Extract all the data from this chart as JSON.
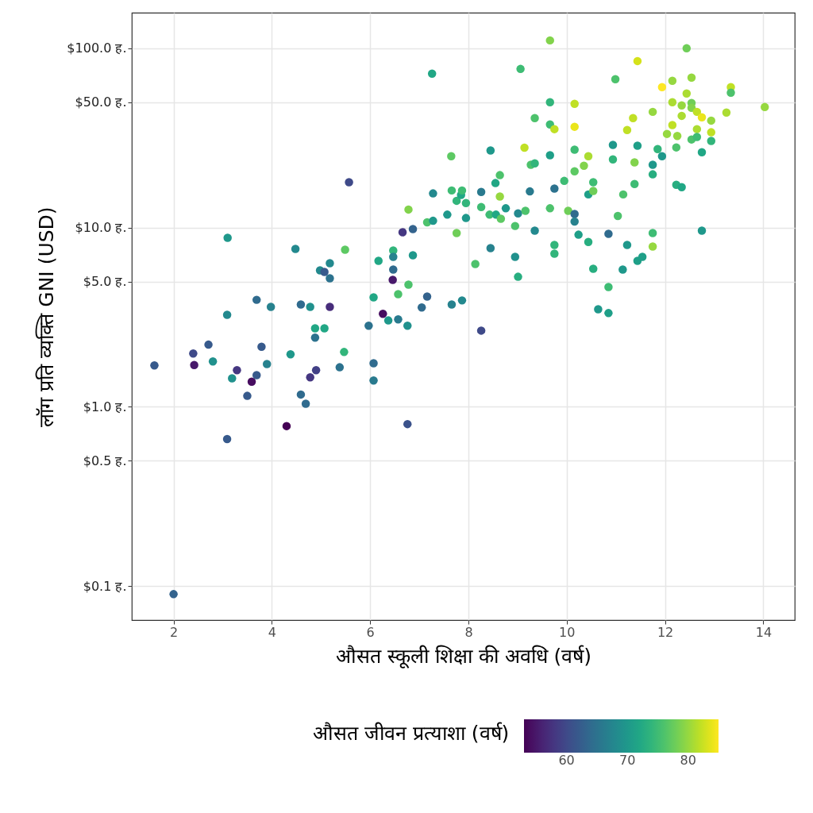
{
  "chart_data": {
    "type": "scatter",
    "xlabel": "औसत स्कूली शिक्षा की अवधि (वर्ष)",
    "ylabel": "लॉग प्रति व्यक्ति GNI (USD)",
    "clabel": "औसत जीवन प्रत्याशा (वर्ष)",
    "log": "y",
    "grid": true,
    "marker": "circle",
    "xlim": [
      1.15,
      14.64
    ],
    "xticks": [
      2,
      4,
      6,
      8,
      10,
      12,
      14
    ],
    "ylim": [
      0.0645,
      158
    ],
    "yticks": [
      {
        "value": 0.1,
        "label": "$0.1 ह."
      },
      {
        "value": 0.5,
        "label": "$0.5 ह."
      },
      {
        "value": 1,
        "label": "$1.0 ह."
      },
      {
        "value": 5,
        "label": "$5.0 ह."
      },
      {
        "value": 10,
        "label": "$10.0 ह."
      },
      {
        "value": 50,
        "label": "$50.0 ह."
      },
      {
        "value": 100,
        "label": "$100.0 ह."
      }
    ],
    "clim": [
      53,
      85
    ],
    "cticks": [
      60,
      70,
      80
    ],
    "x": [
      1.61,
      2.0,
      2.4,
      2.42,
      2.71,
      2.8,
      3.09,
      3.1,
      3.09,
      3.19,
      3.29,
      3.5,
      3.59,
      3.69,
      3.69,
      3.79,
      3.9,
      3.98,
      4.3,
      4.38,
      4.48,
      4.59,
      4.59,
      4.69,
      4.78,
      4.78,
      4.88,
      4.88,
      4.9,
      4.98,
      5.07,
      5.07,
      5.18,
      5.18,
      5.18,
      5.38,
      5.47,
      5.49,
      5.57,
      5.97,
      6.07,
      6.07,
      6.07,
      6.17,
      6.26,
      6.37,
      6.46,
      6.47,
      6.47,
      6.47,
      6.57,
      6.57,
      6.66,
      6.76,
      6.76,
      6.78,
      6.78,
      6.87,
      6.87,
      7.05,
      7.16,
      7.16,
      7.26,
      7.28,
      7.28,
      7.57,
      7.65,
      7.66,
      7.66,
      7.76,
      7.76,
      7.85,
      7.87,
      7.87,
      7.95,
      7.95,
      8.14,
      8.26,
      8.26,
      8.26,
      8.43,
      8.45,
      8.45,
      8.55,
      8.56,
      8.64,
      8.64,
      8.66,
      8.76,
      8.95,
      8.95,
      9.01,
      9.01,
      9.06,
      9.14,
      9.16,
      9.25,
      9.27,
      9.35,
      9.35,
      9.35,
      9.66,
      9.66,
      9.66,
      9.66,
      9.66,
      9.75,
      9.75,
      9.75,
      9.75,
      9.95,
      10.03,
      10.16,
      10.16,
      10.16,
      10.16,
      10.16,
      10.16,
      10.24,
      10.35,
      10.44,
      10.44,
      10.44,
      10.54,
      10.54,
      10.54,
      10.64,
      10.85,
      10.85,
      10.85,
      10.94,
      10.94,
      10.99,
      11.04,
      11.14,
      11.15,
      11.23,
      11.23,
      11.35,
      11.38,
      11.38,
      11.44,
      11.44,
      11.44,
      11.54,
      11.75,
      11.75,
      11.75,
      11.75,
      11.75,
      11.85,
      11.94,
      11.94,
      12.04,
      12.15,
      12.15,
      12.15,
      12.23,
      12.23,
      12.25,
      12.34,
      12.34,
      12.34,
      12.44,
      12.44,
      12.54,
      12.54,
      12.54,
      12.54,
      12.65,
      12.65,
      12.65,
      12.75,
      12.75,
      12.75,
      12.94,
      12.94,
      12.94,
      13.25,
      13.34,
      13.34,
      14.03
    ],
    "values": [
      1.7,
      0.09,
      1.98,
      1.71,
      2.22,
      1.79,
      3.26,
      8.76,
      0.66,
      1.44,
      1.6,
      1.15,
      1.38,
      1.5,
      3.95,
      2.16,
      1.73,
      3.61,
      0.78,
      1.96,
      7.6,
      3.72,
      1.17,
      1.04,
      3.61,
      1.46,
      2.74,
      2.43,
      1.6,
      5.77,
      5.65,
      2.74,
      6.32,
      5.21,
      3.61,
      1.66,
      2.02,
      7.52,
      17.9,
      2.83,
      4.08,
      1.75,
      1.4,
      6.52,
      3.3,
      3.03,
      5.1,
      7.44,
      6.86,
      5.83,
      4.25,
      3.07,
      9.41,
      2.83,
      0.8,
      12.6,
      4.8,
      9.8,
      7.0,
      3.58,
      10.7,
      4.12,
      72.2,
      15.5,
      10.9,
      11.8,
      25.0,
      16.1,
      3.72,
      14.1,
      9.31,
      15.2,
      16.1,
      3.92,
      13.7,
      11.3,
      6.26,
      15.8,
      13.0,
      2.66,
      11.8,
      26.9,
      7.67,
      17.7,
      11.8,
      19.6,
      14.9,
      11.2,
      12.8,
      10.2,
      6.86,
      12.0,
      5.31,
      76.7,
      27.9,
      12.4,
      15.9,
      22.4,
      22.8,
      40.8,
      9.6,
      110.7,
      50.0,
      37.6,
      25.3,
      12.8,
      35.4,
      16.5,
      7.99,
      7.15,
      18.2,
      12.4,
      49.0,
      36.5,
      27.2,
      20.6,
      11.9,
      10.8,
      9.12,
      22.1,
      25.0,
      15.3,
      8.3,
      17.9,
      16.0,
      5.89,
      3.5,
      9.22,
      4.66,
      3.33,
      28.9,
      24.0,
      67.2,
      11.6,
      5.83,
      15.3,
      7.99,
      35.0,
      40.8,
      23.1,
      17.5,
      84.9,
      28.6,
      6.52,
      6.86,
      44.2,
      22.4,
      19.8,
      9.31,
      7.83,
      27.4,
      60.7,
      25.0,
      33.3,
      65.9,
      50.0,
      37.3,
      28.0,
      17.3,
      32.4,
      48.0,
      42.0,
      16.8,
      100,
      56.0,
      68.6,
      49.5,
      46.6,
      31.0,
      44.2,
      35.4,
      32.0,
      41.2,
      26.3,
      9.6,
      39.5,
      34.0,
      30.4,
      43.8,
      60.7,
      56.5,
      47.0
    ],
    "cvalues": [
      62,
      63,
      60,
      55,
      62,
      69,
      68,
      70,
      62,
      69,
      58,
      62,
      54,
      62,
      64,
      62,
      67,
      67,
      53,
      70,
      68,
      64,
      64,
      64,
      69,
      58,
      72,
      65,
      59,
      68,
      62,
      72,
      68,
      65,
      57,
      65,
      74,
      77,
      60,
      65,
      72,
      64,
      66,
      72,
      54,
      70,
      55,
      74,
      67,
      64,
      76,
      66,
      58,
      69,
      61,
      79,
      76,
      63,
      70,
      64,
      76,
      63,
      72,
      68,
      70,
      70,
      77,
      75,
      67,
      74,
      78,
      72,
      75,
      68,
      74,
      70,
      76,
      66,
      75,
      60,
      75,
      70,
      67,
      72,
      72,
      76,
      80,
      77,
      70,
      76,
      69,
      68,
      73,
      75,
      82,
      76,
      66,
      76,
      74,
      76,
      68,
      79,
      74,
      75,
      71,
      76,
      82,
      65,
      74,
      74,
      75,
      78,
      82,
      84,
      75,
      77,
      64,
      67,
      71,
      79,
      81,
      71,
      73,
      75,
      78,
      73,
      70,
      64,
      75,
      71,
      70,
      74,
      76,
      76,
      70,
      76,
      70,
      82,
      82,
      79,
      75,
      83,
      71,
      71,
      71,
      80,
      70,
      73,
      75,
      80,
      74,
      85,
      70,
      80,
      80,
      81,
      82,
      76,
      73,
      80,
      80,
      81,
      72,
      78,
      81,
      80,
      78,
      79,
      76,
      82,
      81,
      75,
      84,
      72,
      70,
      80,
      82,
      74,
      81,
      82,
      76,
      80
    ]
  }
}
